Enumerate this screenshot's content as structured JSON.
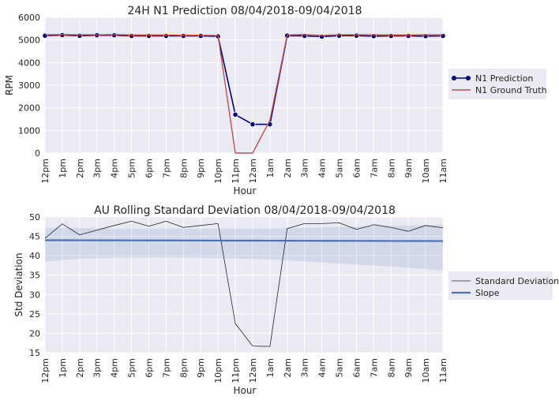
{
  "chart_data": [
    {
      "type": "line",
      "title": "24H N1 Prediction 08/04/2018-09/04/2018",
      "xlabel": "Hour",
      "ylabel": "RPM",
      "ylim": [
        0,
        6000
      ],
      "yticks": [
        0,
        1000,
        2000,
        3000,
        4000,
        5000,
        6000
      ],
      "grid": true,
      "legend_position": "right",
      "categories": [
        "12pm",
        "1pm",
        "2pm",
        "3pm",
        "4pm",
        "5pm",
        "6pm",
        "7pm",
        "8pm",
        "9pm",
        "10pm",
        "11pm",
        "12am",
        "1am",
        "2am",
        "3am",
        "4am",
        "5am",
        "6am",
        "7am",
        "8am",
        "9am",
        "10am",
        "11am"
      ],
      "series": [
        {
          "name": "N1 Prediction",
          "style": "line-marker",
          "color": "#00007f",
          "values": [
            5190,
            5215,
            5185,
            5210,
            5210,
            5180,
            5180,
            5180,
            5180,
            5180,
            5160,
            1700,
            1270,
            1270,
            5190,
            5180,
            5150,
            5190,
            5190,
            5170,
            5180,
            5180,
            5170,
            5180
          ]
        },
        {
          "name": "N1 Ground Truth",
          "style": "line",
          "color": "#c44e52",
          "values": [
            5230,
            5240,
            5230,
            5230,
            5240,
            5220,
            5220,
            5220,
            5210,
            5210,
            5200,
            0,
            0,
            1450,
            5220,
            5240,
            5200,
            5230,
            5230,
            5230,
            5220,
            5220,
            5230,
            5230
          ]
        }
      ]
    },
    {
      "type": "line",
      "title": "AU Rolling Standard Deviation 08/04/2018-09/04/2018",
      "xlabel": "Hour",
      "ylabel": "Std Deviation",
      "ylim": [
        15,
        50
      ],
      "yticks": [
        15,
        20,
        25,
        30,
        35,
        40,
        45,
        50
      ],
      "grid": true,
      "legend_position": "right",
      "categories": [
        "12pm",
        "1pm",
        "2pm",
        "3pm",
        "4pm",
        "5pm",
        "6pm",
        "7pm",
        "8pm",
        "9pm",
        "10pm",
        "11pm",
        "12am",
        "1am",
        "2am",
        "3am",
        "4am",
        "5am",
        "6am",
        "7am",
        "8am",
        "9am",
        "10am",
        "11am"
      ],
      "series": [
        {
          "name": "Standard Deviation",
          "style": "thin-line",
          "color": "#262626",
          "values": [
            44.5,
            48.2,
            45.4,
            46.6,
            47.8,
            48.9,
            47.6,
            48.9,
            47.3,
            47.8,
            48.3,
            22.5,
            16.7,
            16.6,
            47.0,
            48.3,
            48.3,
            48.5,
            46.8,
            48.0,
            47.3,
            46.3,
            47.8,
            47.2
          ]
        },
        {
          "name": "Slope",
          "style": "thick-line",
          "color": "#4c72b0",
          "values": [
            44.0,
            43.99,
            43.98,
            43.97,
            43.97,
            43.96,
            43.95,
            43.94,
            43.93,
            43.92,
            43.91,
            43.9,
            43.89,
            43.88,
            43.87,
            43.86,
            43.85,
            43.84,
            43.83,
            43.82,
            43.81,
            43.8,
            43.79,
            43.78
          ],
          "band_upper": [
            47.2,
            47.2,
            47.1,
            47.1,
            47.0,
            47.0,
            47.0,
            47.0,
            47.0,
            47.0,
            47.0,
            47.0,
            47.0,
            47.0,
            47.1,
            47.2,
            47.3,
            47.4,
            47.5,
            47.6,
            47.7,
            47.8,
            47.9,
            48.0
          ],
          "band_lower": [
            38.5,
            38.9,
            39.2,
            39.4,
            39.5,
            39.6,
            39.6,
            39.6,
            39.6,
            39.5,
            39.4,
            39.3,
            39.2,
            39.0,
            38.8,
            38.6,
            38.3,
            38.0,
            37.7,
            37.5,
            37.2,
            36.9,
            36.6,
            36.2
          ]
        }
      ]
    }
  ]
}
